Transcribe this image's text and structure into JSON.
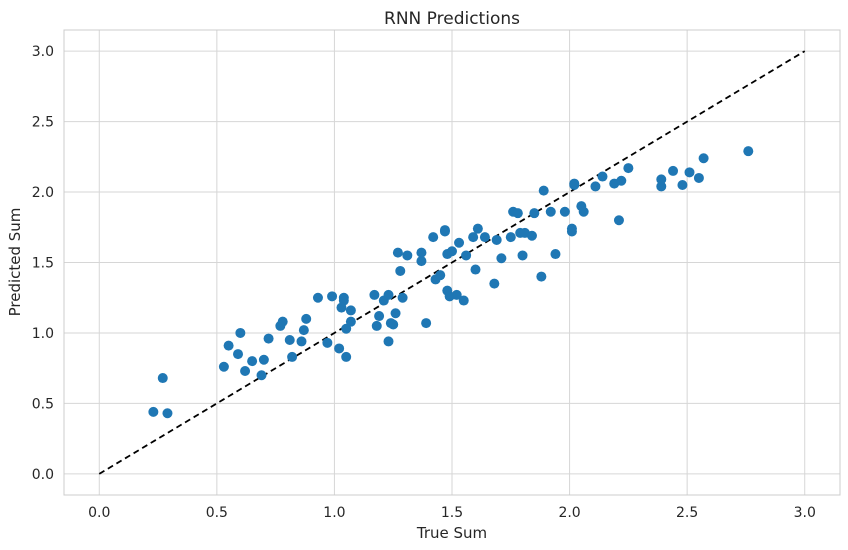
{
  "chart_data": {
    "type": "scatter",
    "title": "RNN Predictions",
    "xlabel": "True Sum",
    "ylabel": "Predicted Sum",
    "xlim": [
      -0.15,
      3.15
    ],
    "ylim": [
      -0.15,
      3.15
    ],
    "xticks": [
      "0.0",
      "0.5",
      "1.0",
      "1.5",
      "2.0",
      "2.5",
      "3.0"
    ],
    "yticks": [
      "0.0",
      "0.5",
      "1.0",
      "1.5",
      "2.0",
      "2.5",
      "3.0"
    ],
    "grid": true,
    "point_color": "#1f77b4",
    "reference_line": {
      "x": [
        0,
        3
      ],
      "y": [
        0,
        3
      ],
      "color": "#000000",
      "style": "dashed"
    },
    "points": [
      [
        0.23,
        0.44
      ],
      [
        0.27,
        0.68
      ],
      [
        0.29,
        0.43
      ],
      [
        0.53,
        0.76
      ],
      [
        0.55,
        0.91
      ],
      [
        0.59,
        0.85
      ],
      [
        0.6,
        1.0
      ],
      [
        0.62,
        0.73
      ],
      [
        0.65,
        0.8
      ],
      [
        0.69,
        0.7
      ],
      [
        0.7,
        0.81
      ],
      [
        0.72,
        0.96
      ],
      [
        0.77,
        1.05
      ],
      [
        0.78,
        1.08
      ],
      [
        0.81,
        0.95
      ],
      [
        0.82,
        0.83
      ],
      [
        0.86,
        0.94
      ],
      [
        0.87,
        1.02
      ],
      [
        0.88,
        1.1
      ],
      [
        0.93,
        1.25
      ],
      [
        0.97,
        0.93
      ],
      [
        0.99,
        1.26
      ],
      [
        1.02,
        0.89
      ],
      [
        1.03,
        1.18
      ],
      [
        1.04,
        1.25
      ],
      [
        1.04,
        1.23
      ],
      [
        1.05,
        0.83
      ],
      [
        1.05,
        1.03
      ],
      [
        1.07,
        1.16
      ],
      [
        1.07,
        1.08
      ],
      [
        1.17,
        1.27
      ],
      [
        1.18,
        1.05
      ],
      [
        1.19,
        1.12
      ],
      [
        1.21,
        1.23
      ],
      [
        1.23,
        1.27
      ],
      [
        1.23,
        0.94
      ],
      [
        1.24,
        1.07
      ],
      [
        1.25,
        1.06
      ],
      [
        1.26,
        1.14
      ],
      [
        1.27,
        1.57
      ],
      [
        1.28,
        1.44
      ],
      [
        1.29,
        1.25
      ],
      [
        1.31,
        1.55
      ],
      [
        1.37,
        1.51
      ],
      [
        1.37,
        1.57
      ],
      [
        1.39,
        1.07
      ],
      [
        1.42,
        1.68
      ],
      [
        1.43,
        1.38
      ],
      [
        1.45,
        1.41
      ],
      [
        1.47,
        1.72
      ],
      [
        1.47,
        1.73
      ],
      [
        1.48,
        1.56
      ],
      [
        1.48,
        1.3
      ],
      [
        1.49,
        1.26
      ],
      [
        1.5,
        1.58
      ],
      [
        1.52,
        1.27
      ],
      [
        1.53,
        1.64
      ],
      [
        1.55,
        1.23
      ],
      [
        1.56,
        1.55
      ],
      [
        1.59,
        1.68
      ],
      [
        1.6,
        1.45
      ],
      [
        1.61,
        1.74
      ],
      [
        1.64,
        1.68
      ],
      [
        1.68,
        1.35
      ],
      [
        1.69,
        1.66
      ],
      [
        1.71,
        1.53
      ],
      [
        1.75,
        1.68
      ],
      [
        1.76,
        1.86
      ],
      [
        1.78,
        1.85
      ],
      [
        1.79,
        1.71
      ],
      [
        1.8,
        1.55
      ],
      [
        1.81,
        1.71
      ],
      [
        1.84,
        1.69
      ],
      [
        1.85,
        1.85
      ],
      [
        1.88,
        1.4
      ],
      [
        1.89,
        2.01
      ],
      [
        1.92,
        1.86
      ],
      [
        1.94,
        1.56
      ],
      [
        1.98,
        1.86
      ],
      [
        2.01,
        1.74
      ],
      [
        2.01,
        1.72
      ],
      [
        2.02,
        2.05
      ],
      [
        2.02,
        2.06
      ],
      [
        2.05,
        1.9
      ],
      [
        2.06,
        1.86
      ],
      [
        2.11,
        2.04
      ],
      [
        2.14,
        2.11
      ],
      [
        2.19,
        2.06
      ],
      [
        2.21,
        1.8
      ],
      [
        2.22,
        2.08
      ],
      [
        2.25,
        2.17
      ],
      [
        2.39,
        2.04
      ],
      [
        2.39,
        2.09
      ],
      [
        2.44,
        2.15
      ],
      [
        2.48,
        2.05
      ],
      [
        2.51,
        2.14
      ],
      [
        2.55,
        2.1
      ],
      [
        2.57,
        2.24
      ],
      [
        2.76,
        2.29
      ]
    ]
  }
}
